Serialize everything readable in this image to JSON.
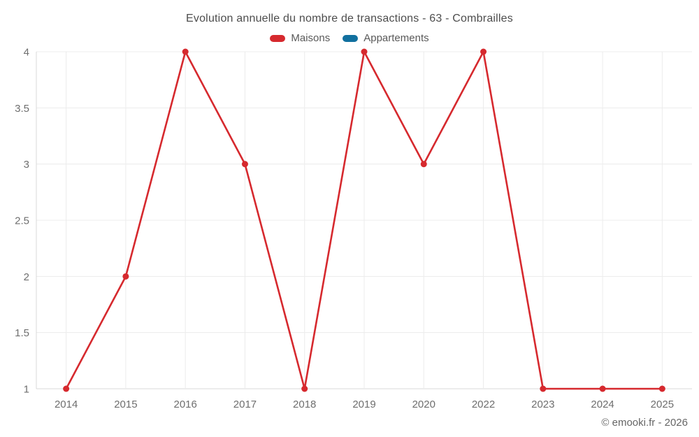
{
  "chart_data": {
    "type": "line",
    "title": "Evolution annuelle du nombre de transactions - 63 - Combrailles",
    "categories": [
      "2014",
      "2015",
      "2016",
      "2017",
      "2018",
      "2019",
      "2020",
      "2022",
      "2023",
      "2024",
      "2025"
    ],
    "series": [
      {
        "name": "Maisons",
        "color": "#d6292e",
        "values": [
          1,
          2,
          4,
          3,
          1,
          4,
          3,
          4,
          1,
          1,
          1
        ]
      },
      {
        "name": "Appartements",
        "color": "#11709f",
        "values": []
      }
    ],
    "xlabel": "",
    "ylabel": "",
    "ylim": [
      1,
      4
    ],
    "yticks": [
      1,
      1.5,
      2,
      2.5,
      3,
      3.5,
      4
    ],
    "grid": true,
    "legend_position": "top"
  },
  "footer": {
    "copyright": "© emooki.fr - 2026"
  }
}
